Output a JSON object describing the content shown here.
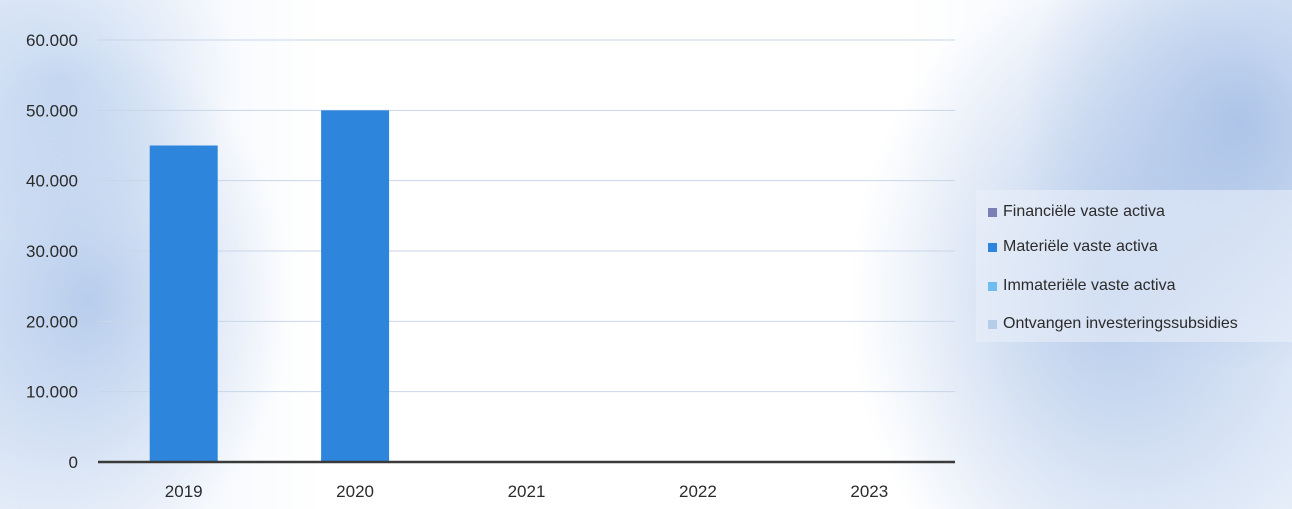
{
  "chart_data": {
    "type": "bar",
    "title": "",
    "xlabel": "",
    "ylabel": "",
    "categories": [
      "2019",
      "2020",
      "2021",
      "2022",
      "2023"
    ],
    "ylim": [
      0,
      60000
    ],
    "yticks": [
      0,
      10000,
      20000,
      30000,
      40000,
      50000,
      60000
    ],
    "ytick_labels": [
      "0",
      "10.000",
      "20.000",
      "30.000",
      "40.000",
      "50.000",
      "60.000"
    ],
    "grid": true,
    "legend_position": "right",
    "series": [
      {
        "name": "Financiële vaste activa",
        "color": "#7b7fb5",
        "values": [
          0,
          0,
          0,
          0,
          0
        ]
      },
      {
        "name": "Materiële vaste activa",
        "color": "#2d86dc",
        "values": [
          45000,
          50000,
          0,
          0,
          0
        ]
      },
      {
        "name": "Immateriële vaste activa",
        "color": "#6fbdf0",
        "values": [
          0,
          0,
          0,
          0,
          0
        ]
      },
      {
        "name": "Ontvangen investeringssubsidies",
        "color": "#b6cde9",
        "values": [
          0,
          0,
          0,
          0,
          0
        ]
      }
    ]
  }
}
